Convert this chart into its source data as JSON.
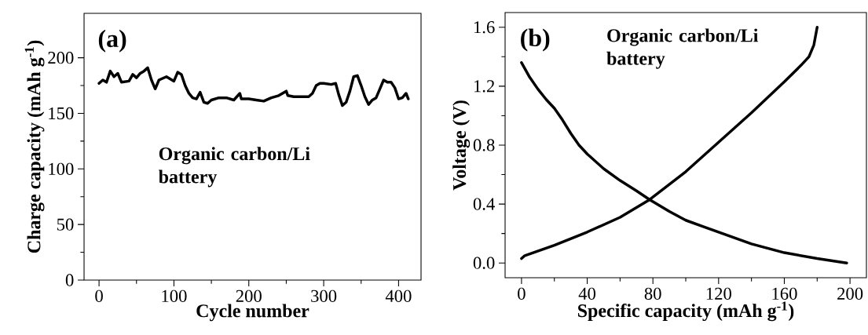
{
  "chart_data": [
    {
      "type": "line",
      "xlabel": "Cycle number",
      "ylabel": "Charge capacity (mAh g$^{-1}$)",
      "annotations": [
        "(a)",
        "Organic carbon/Li battery"
      ],
      "x": [
        0,
        5,
        10,
        15,
        20,
        25,
        30,
        40,
        45,
        50,
        55,
        60,
        65,
        70,
        75,
        80,
        90,
        100,
        105,
        110,
        115,
        120,
        125,
        130,
        135,
        140,
        145,
        150,
        160,
        170,
        180,
        188,
        190,
        200,
        210,
        220,
        230,
        240,
        250,
        252,
        260,
        270,
        280,
        285,
        290,
        295,
        300,
        310,
        316,
        320,
        325,
        330,
        335,
        340,
        345,
        350,
        355,
        360,
        365,
        370,
        375,
        380,
        385,
        390,
        395,
        400,
        405,
        410,
        413
      ],
      "series": [
        {
          "color": "#000000",
          "values": [
            177,
            180,
            178,
            188,
            183,
            186,
            178,
            179,
            185,
            182,
            186,
            188,
            191,
            180,
            172,
            180,
            183,
            179,
            187,
            185,
            175,
            168,
            164,
            163,
            169,
            160,
            159,
            162,
            164,
            164,
            162,
            168,
            163,
            163,
            162,
            161,
            164,
            166,
            170,
            166,
            165,
            165,
            165,
            168,
            175,
            177,
            177,
            176,
            177,
            167,
            157,
            160,
            170,
            183,
            184,
            175,
            165,
            158,
            162,
            164,
            172,
            180,
            178,
            178,
            173,
            163,
            164,
            168,
            163
          ]
        }
      ],
      "xlim": [
        -20,
        430
      ],
      "xticks": [
        0,
        100,
        200,
        300,
        400
      ],
      "ylim": [
        0,
        240
      ],
      "yticks": [
        0,
        50,
        100,
        150,
        200
      ],
      "marker": "none",
      "line_style": "solid"
    },
    {
      "type": "line",
      "xlabel": "Specific capacity (mAh g$^{-1}$)",
      "ylabel": "Voltage (V)",
      "annotations": [
        "(b)",
        "Organic carbon/Li battery"
      ],
      "series": [
        {
          "color": "#000000",
          "x": [
            0,
            2,
            5,
            10,
            15,
            20,
            25,
            30,
            35,
            40,
            50,
            60,
            70,
            78,
            90,
            100,
            110,
            120,
            140,
            160,
            180,
            198
          ],
          "values": [
            1.36,
            1.32,
            1.26,
            1.18,
            1.11,
            1.05,
            0.97,
            0.88,
            0.8,
            0.74,
            0.64,
            0.56,
            0.49,
            0.43,
            0.35,
            0.29,
            0.25,
            0.21,
            0.13,
            0.07,
            0.03,
            0.0
          ]
        },
        {
          "color": "#000000",
          "x": [
            0,
            2,
            20,
            40,
            60,
            78,
            100,
            120,
            140,
            160,
            170,
            175,
            178,
            180
          ],
          "values": [
            0.03,
            0.05,
            0.12,
            0.21,
            0.31,
            0.43,
            0.62,
            0.82,
            1.02,
            1.23,
            1.34,
            1.4,
            1.48,
            1.6
          ]
        }
      ],
      "xlim": [
        -10,
        210
      ],
      "xticks": [
        0,
        40,
        80,
        120,
        160,
        200
      ],
      "ylim": [
        -0.1,
        1.7
      ],
      "yticks": [
        {
          "value": 0,
          "label": "0.0"
        },
        {
          "value": 0.4,
          "label": "0.4"
        },
        {
          "value": 0.8,
          "label": "0.8"
        },
        {
          "value": 1.2,
          "label": "1.2"
        },
        {
          "value": 1.6,
          "label": "1.6"
        }
      ],
      "marker": "none",
      "line_style": "solid"
    }
  ]
}
